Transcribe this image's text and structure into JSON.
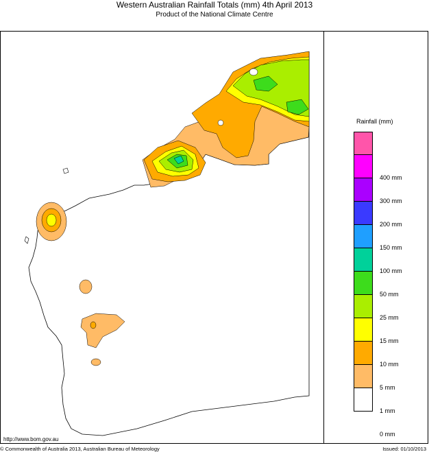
{
  "header": {
    "title": "Western Australian Rainfall Totals (mm) 4th April 2013",
    "subtitle": "Product of the National Climate Centre"
  },
  "legend": {
    "title": "Rainfall (mm)",
    "items": [
      {
        "color": "#ff55aa",
        "label": ""
      },
      {
        "color": "#ff00ff",
        "label": "400 mm"
      },
      {
        "color": "#aa00ff",
        "label": "300 mm"
      },
      {
        "color": "#3a3aff",
        "label": "200 mm"
      },
      {
        "color": "#1f9fff",
        "label": "150 mm"
      },
      {
        "color": "#00d19a",
        "label": "100 mm"
      },
      {
        "color": "#3ddc1c",
        "label": "50 mm"
      },
      {
        "color": "#aaee00",
        "label": "25 mm"
      },
      {
        "color": "#ffff00",
        "label": "15 mm"
      },
      {
        "color": "#ffaa00",
        "label": "10 mm"
      },
      {
        "color": "#ffbb66",
        "label": "5 mm"
      },
      {
        "color": "#ffffff",
        "label": "1 mm"
      },
      {
        "color": "",
        "label": "0 mm"
      }
    ]
  },
  "footer": {
    "url": "http://www.bom.gov.au",
    "copyright": "© Commonwealth of Australia 2013, Australian Bureau of Meteorology",
    "issued": "Issued: 01/10/2013"
  }
}
